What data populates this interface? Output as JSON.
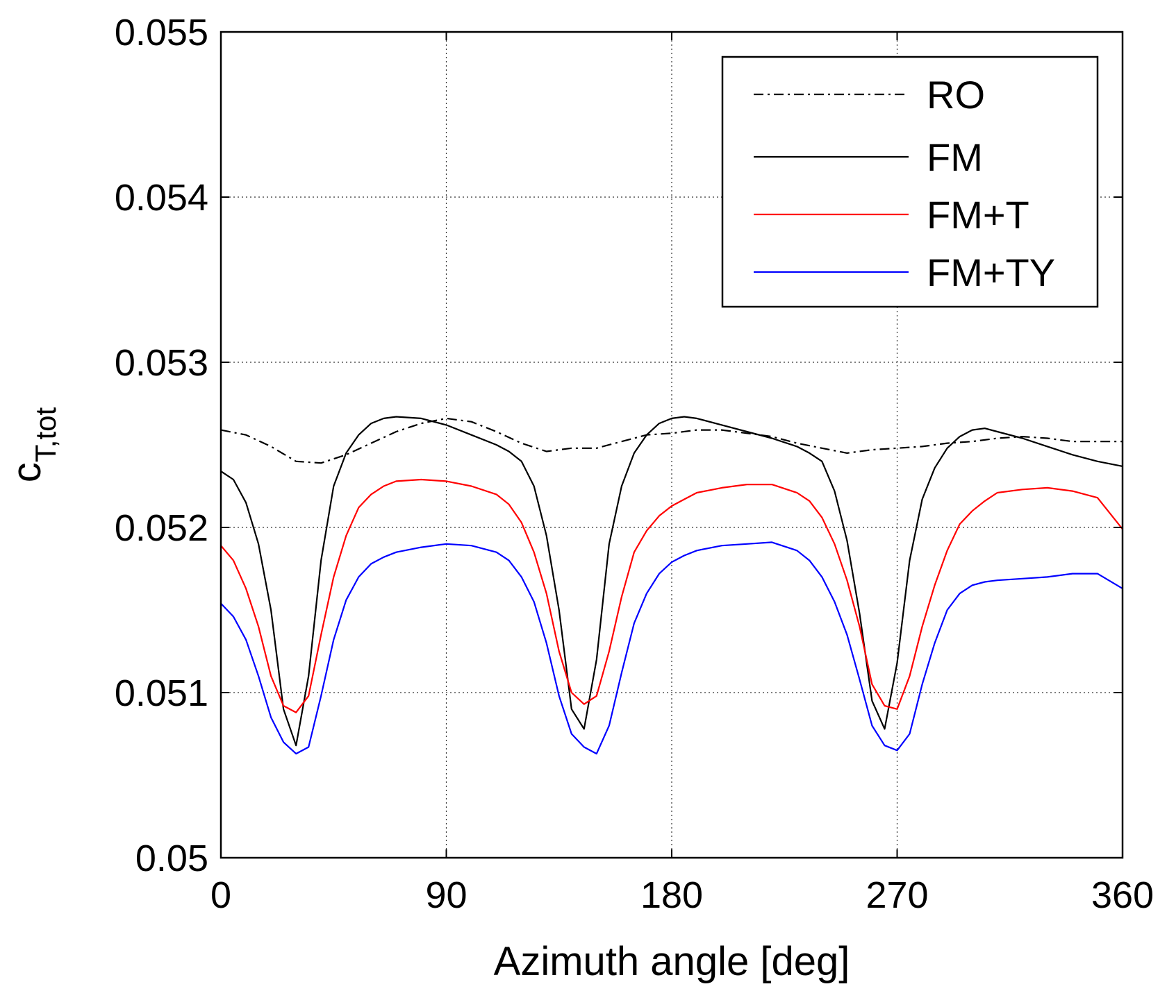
{
  "chart_data": {
    "type": "line",
    "title": "",
    "xlabel": "Azimuth angle [deg]",
    "ylabel": {
      "base": "c",
      "subscript": "T,tot"
    },
    "xlim": [
      0,
      360
    ],
    "ylim": [
      0.05,
      0.055
    ],
    "xticks": [
      0,
      90,
      180,
      270,
      360
    ],
    "xtick_labels": [
      "0",
      "90",
      "180",
      "270",
      "360"
    ],
    "yticks": [
      0.05,
      0.051,
      0.052,
      0.053,
      0.054,
      0.055
    ],
    "ytick_labels": [
      "0.05",
      "0.051",
      "0.052",
      "0.053",
      "0.054",
      "0.055"
    ],
    "grid": true,
    "legend_position": "top-right",
    "series": [
      {
        "name": "RO",
        "color": "#000000",
        "style": "dash-dot",
        "x": [
          0,
          10,
          20,
          30,
          40,
          50,
          60,
          70,
          80,
          90,
          100,
          110,
          120,
          130,
          140,
          150,
          160,
          170,
          180,
          190,
          200,
          210,
          220,
          230,
          240,
          250,
          260,
          270,
          280,
          290,
          300,
          310,
          320,
          330,
          340,
          350,
          360
        ],
        "y": [
          0.05259,
          0.05256,
          0.05249,
          0.0524,
          0.05239,
          0.05244,
          0.05251,
          0.05258,
          0.05263,
          0.05266,
          0.05264,
          0.05258,
          0.05251,
          0.05246,
          0.05248,
          0.05248,
          0.05252,
          0.05256,
          0.05257,
          0.05259,
          0.05259,
          0.05257,
          0.05255,
          0.05251,
          0.05248,
          0.05245,
          0.05247,
          0.05248,
          0.05249,
          0.05251,
          0.05252,
          0.05254,
          0.05255,
          0.05254,
          0.05252,
          0.05252,
          0.05252
        ]
      },
      {
        "name": "FM",
        "color": "#000000",
        "style": "solid",
        "x": [
          0,
          5,
          10,
          15,
          20,
          25,
          30,
          35,
          40,
          45,
          50,
          55,
          60,
          65,
          70,
          80,
          90,
          100,
          110,
          115,
          120,
          125,
          130,
          135,
          140,
          145,
          150,
          155,
          160,
          165,
          170,
          175,
          180,
          185,
          190,
          200,
          210,
          220,
          230,
          235,
          240,
          245,
          250,
          255,
          260,
          265,
          270,
          275,
          280,
          285,
          290,
          295,
          300,
          305,
          310,
          320,
          330,
          340,
          350,
          360
        ],
        "y": [
          0.05234,
          0.05229,
          0.05215,
          0.0519,
          0.0515,
          0.0509,
          0.05068,
          0.0511,
          0.0518,
          0.05225,
          0.05245,
          0.05256,
          0.05263,
          0.05266,
          0.05267,
          0.05266,
          0.05262,
          0.05256,
          0.0525,
          0.05246,
          0.0524,
          0.05225,
          0.05195,
          0.0515,
          0.0509,
          0.05078,
          0.0512,
          0.0519,
          0.05225,
          0.05245,
          0.05256,
          0.05263,
          0.05266,
          0.05267,
          0.05266,
          0.05262,
          0.05258,
          0.05254,
          0.05249,
          0.05245,
          0.0524,
          0.05222,
          0.05192,
          0.05148,
          0.05095,
          0.05078,
          0.05118,
          0.0518,
          0.05217,
          0.05236,
          0.05248,
          0.05255,
          0.05259,
          0.0526,
          0.05258,
          0.05254,
          0.05249,
          0.05244,
          0.0524,
          0.05237
        ]
      },
      {
        "name": "FM+T",
        "color": "#ff0000",
        "style": "solid",
        "x": [
          0,
          5,
          10,
          15,
          20,
          25,
          30,
          35,
          40,
          45,
          50,
          55,
          60,
          65,
          70,
          80,
          90,
          100,
          110,
          115,
          120,
          125,
          130,
          135,
          140,
          145,
          150,
          155,
          160,
          165,
          170,
          175,
          180,
          185,
          190,
          200,
          210,
          220,
          230,
          235,
          240,
          245,
          250,
          255,
          260,
          265,
          270,
          275,
          280,
          285,
          290,
          295,
          300,
          305,
          310,
          320,
          330,
          340,
          350,
          360
        ],
        "y": [
          0.05189,
          0.0518,
          0.05163,
          0.0514,
          0.0511,
          0.05092,
          0.05088,
          0.05098,
          0.05135,
          0.0517,
          0.05195,
          0.05212,
          0.0522,
          0.05225,
          0.05228,
          0.05229,
          0.05228,
          0.05225,
          0.0522,
          0.05214,
          0.05203,
          0.05185,
          0.0516,
          0.05125,
          0.051,
          0.05093,
          0.05098,
          0.05125,
          0.05158,
          0.05185,
          0.05198,
          0.05207,
          0.05213,
          0.05217,
          0.05221,
          0.05224,
          0.05226,
          0.05226,
          0.05221,
          0.05216,
          0.05206,
          0.0519,
          0.05168,
          0.0514,
          0.05105,
          0.05092,
          0.0509,
          0.0511,
          0.0514,
          0.05165,
          0.05186,
          0.05202,
          0.0521,
          0.05216,
          0.05221,
          0.05223,
          0.05224,
          0.05222,
          0.05218,
          0.05199
        ]
      },
      {
        "name": "FM+TY",
        "color": "#0000ff",
        "style": "solid",
        "x": [
          0,
          5,
          10,
          15,
          20,
          25,
          30,
          35,
          40,
          45,
          50,
          55,
          60,
          65,
          70,
          80,
          90,
          100,
          110,
          115,
          120,
          125,
          130,
          135,
          140,
          145,
          150,
          155,
          160,
          165,
          170,
          175,
          180,
          185,
          190,
          200,
          210,
          220,
          230,
          235,
          240,
          245,
          250,
          255,
          260,
          265,
          270,
          275,
          280,
          285,
          290,
          295,
          300,
          305,
          310,
          320,
          330,
          340,
          350,
          360
        ],
        "y": [
          0.05154,
          0.05146,
          0.05132,
          0.0511,
          0.05085,
          0.0507,
          0.05063,
          0.05067,
          0.05098,
          0.05132,
          0.05156,
          0.0517,
          0.05178,
          0.05182,
          0.05185,
          0.05188,
          0.0519,
          0.05189,
          0.05185,
          0.0518,
          0.0517,
          0.05155,
          0.0513,
          0.05098,
          0.05075,
          0.05067,
          0.05063,
          0.0508,
          0.05112,
          0.05142,
          0.0516,
          0.05172,
          0.05179,
          0.05183,
          0.05186,
          0.05189,
          0.0519,
          0.05191,
          0.05186,
          0.0518,
          0.0517,
          0.05155,
          0.05135,
          0.05108,
          0.0508,
          0.05068,
          0.05065,
          0.05075,
          0.05105,
          0.0513,
          0.0515,
          0.0516,
          0.05165,
          0.05167,
          0.05168,
          0.05169,
          0.0517,
          0.05172,
          0.05172,
          0.05163
        ]
      }
    ]
  }
}
